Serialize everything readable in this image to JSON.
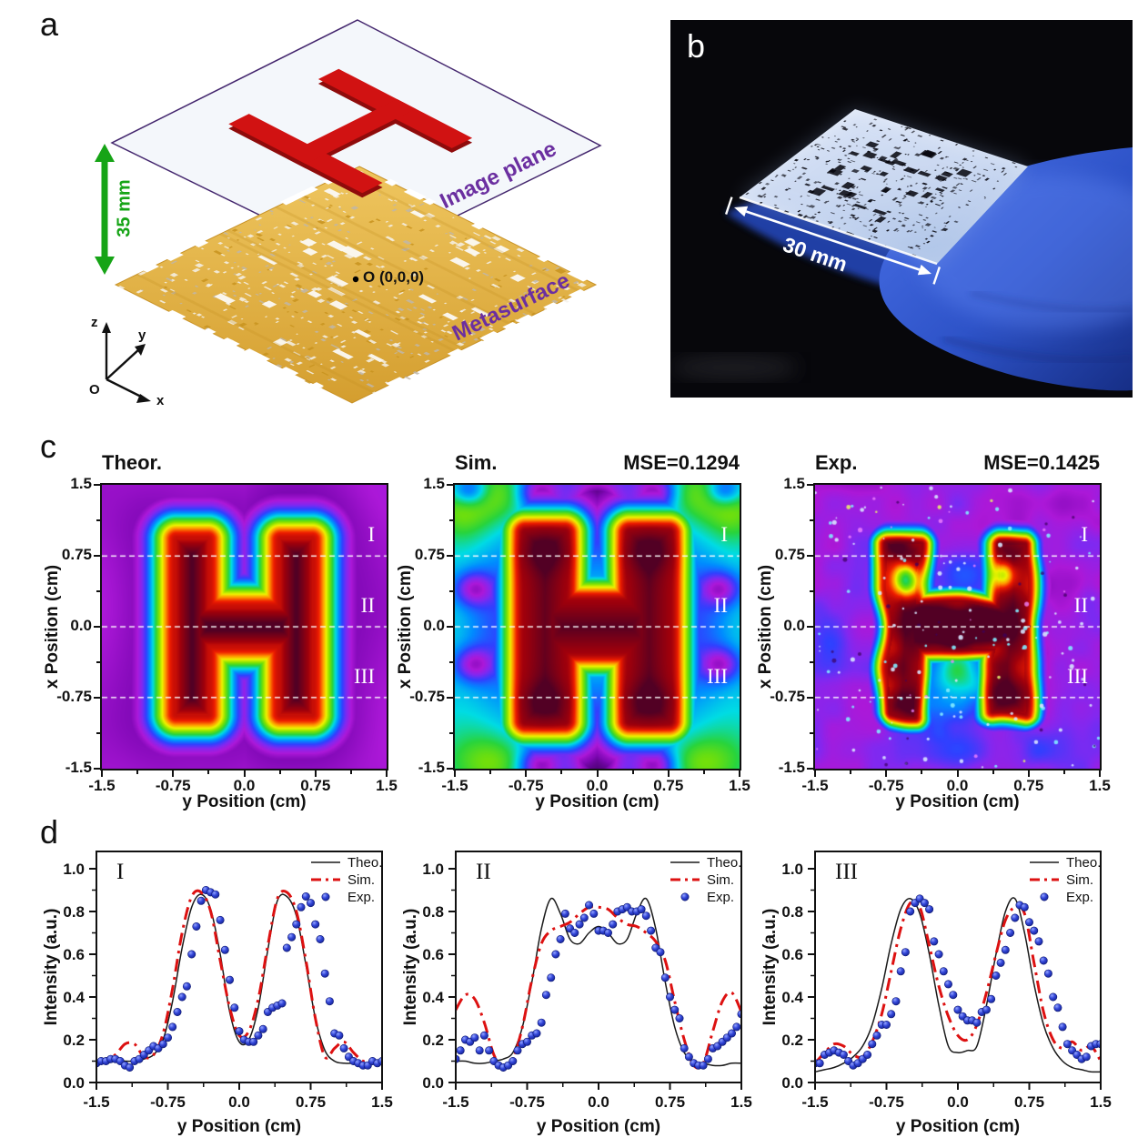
{
  "panels": {
    "a": "a",
    "b": "b",
    "c": "c",
    "d": "d"
  },
  "panel_a": {
    "distance_label": "35 mm",
    "plane_label": "Image plane",
    "surface_label": "Metasurface",
    "origin_point_label": "O (0,0,0)",
    "axis_x": "x",
    "axis_y": "y",
    "axis_z": "z",
    "axis_origin": "O",
    "colors": {
      "arrow_green": "#16A416",
      "label_purple": "#6B2FA0",
      "gold": "#DFAC3E",
      "h_red": "#D11212",
      "plane_fill": "#F4F7FB",
      "plane_edge": "#44276E"
    }
  },
  "panel_b": {
    "dimension_label": "30 mm",
    "colors": {
      "background": "#07070B",
      "glove_blue": "#2E53C8",
      "sample_light": "#DCE6F5"
    }
  },
  "panel_c": {
    "xlabel": "y Position (cm)",
    "ylabel": "x Position (cm)",
    "xtick_labels": [
      "-1.5",
      "-0.75",
      "0.0",
      "0.75",
      "1.5"
    ],
    "ytick_labels": [
      "1.5",
      "0.75",
      "0.0",
      "-0.75",
      "-1.5"
    ],
    "section_labels": [
      "I",
      "II",
      "III"
    ],
    "section_x_positions_cm": [
      0.75,
      0.0,
      -0.75
    ],
    "maps": [
      {
        "title": "Theor.",
        "mse_label": ""
      },
      {
        "title": "Sim.",
        "mse_label": "MSE=0.1294"
      },
      {
        "title": "Exp.",
        "mse_label": "MSE=0.1425"
      }
    ]
  },
  "panel_d": {
    "xlabel": "y Position (cm)",
    "ylabel": "Intensity (a.u.)",
    "xtick_labels": [
      "-1.5",
      "-0.75",
      "0.0",
      "0.75",
      "1.5"
    ],
    "ytick_labels": [
      "0.0",
      "0.2",
      "0.4",
      "0.6",
      "0.8",
      "1.0"
    ],
    "legend": [
      "Theo.",
      "Sim.",
      "Exp."
    ],
    "colors": {
      "theo": "#1A1A1A",
      "sim": "#DD1111",
      "exp": "#2433C0"
    }
  },
  "chart_data": [
    {
      "type": "heatmap",
      "title": "Theor.",
      "xlabel": "y Position (cm)",
      "ylabel": "x Position (cm)",
      "xlim": [
        -1.5,
        1.5
      ],
      "ylim": [
        -1.5,
        1.5
      ],
      "pattern": "letter-H intensity distribution, smooth theoretical field",
      "colormap": "purple-blue-cyan-green-yellow-red-darkred",
      "cross_section_lines_cm": [
        0.75,
        0.0,
        -0.75
      ],
      "cross_section_labels": [
        "I",
        "II",
        "III"
      ]
    },
    {
      "type": "heatmap",
      "title": "Sim.",
      "mse": 0.1294,
      "xlabel": "y Position (cm)",
      "ylabel": "x Position (cm)",
      "xlim": [
        -1.5,
        1.5
      ],
      "ylim": [
        -1.5,
        1.5
      ],
      "pattern": "letter-H intensity distribution, simulated field with sidelobes",
      "colormap": "purple-blue-cyan-green-yellow-red-darkred",
      "cross_section_lines_cm": [
        0.75,
        0.0,
        -0.75
      ],
      "cross_section_labels": [
        "I",
        "II",
        "III"
      ]
    },
    {
      "type": "heatmap",
      "title": "Exp.",
      "mse": 0.1425,
      "xlabel": "y Position (cm)",
      "ylabel": "x Position (cm)",
      "xlim": [
        -1.5,
        1.5
      ],
      "ylim": [
        -1.5,
        1.5
      ],
      "pattern": "letter-H intensity distribution, measured noisy field",
      "colormap": "purple-blue-cyan-green-yellow-red-darkred",
      "cross_section_lines_cm": [
        0.75,
        0.0,
        -0.75
      ],
      "cross_section_labels": [
        "I",
        "II",
        "III"
      ]
    },
    {
      "type": "line",
      "title": "I",
      "xlabel": "y Position (cm)",
      "ylabel": "Intensity (a.u.)",
      "xlim": [
        -1.5,
        1.5
      ],
      "ylim": [
        0,
        1.07
      ],
      "xticks": [
        -1.5,
        -0.75,
        0,
        0.75,
        1.5
      ],
      "yticks": [
        0,
        0.2,
        0.4,
        0.6,
        0.8,
        1
      ],
      "series": [
        {
          "name": "Theo.",
          "style": "solid",
          "color_key": "theo",
          "x_start": -1.5,
          "x_step": 0.1,
          "y": [
            0.09,
            0.09,
            0.1,
            0.1,
            0.1,
            0.11,
            0.13,
            0.2,
            0.38,
            0.63,
            0.82,
            0.88,
            0.81,
            0.6,
            0.33,
            0.19,
            0.2,
            0.35,
            0.62,
            0.85,
            0.87,
            0.78,
            0.55,
            0.3,
            0.15,
            0.1,
            0.09,
            0.09,
            0.09,
            0.09,
            0.09
          ]
        },
        {
          "name": "Sim.",
          "style": "dashdot",
          "color_key": "sim",
          "x_start": -1.5,
          "x_step": 0.1,
          "y": [
            0.1,
            0.11,
            0.13,
            0.18,
            0.18,
            0.12,
            0.13,
            0.23,
            0.44,
            0.7,
            0.87,
            0.89,
            0.8,
            0.57,
            0.35,
            0.22,
            0.24,
            0.39,
            0.64,
            0.86,
            0.89,
            0.8,
            0.57,
            0.3,
            0.12,
            0.16,
            0.19,
            0.14,
            0.1,
            0.1,
            0.1
          ]
        },
        {
          "name": "Exp.",
          "style": "dots",
          "color_key": "exp",
          "x_start": -1.5,
          "x_step": 0.05,
          "y": [
            0.09,
            0.1,
            0.1,
            0.11,
            0.11,
            0.1,
            0.08,
            0.07,
            0.1,
            0.11,
            0.13,
            0.15,
            0.17,
            0.16,
            0.18,
            0.21,
            0.26,
            0.33,
            0.4,
            0.45,
            0.6,
            0.73,
            0.85,
            0.9,
            0.89,
            0.88,
            0.76,
            0.62,
            0.48,
            0.35,
            0.24,
            0.2,
            0.19,
            0.19,
            0.22,
            0.25,
            0.33,
            0.35,
            0.36,
            0.37,
            0.63,
            0.68,
            0.74,
            0.82,
            0.87,
            0.84,
            0.74,
            0.67,
            0.51,
            0.38,
            0.23,
            0.22,
            0.16,
            0.12,
            0.1,
            0.09,
            0.08,
            0.08,
            0.1,
            0.09,
            0.1
          ]
        }
      ]
    },
    {
      "type": "line",
      "title": "II",
      "xlabel": "y Position (cm)",
      "ylabel": "Intensity (a.u.)",
      "xlim": [
        -1.5,
        1.5
      ],
      "ylim": [
        0,
        1.07
      ],
      "xticks": [
        -1.5,
        -0.75,
        0,
        0.75,
        1.5
      ],
      "yticks": [
        0,
        0.2,
        0.4,
        0.6,
        0.8,
        1
      ],
      "series": [
        {
          "name": "Theo.",
          "style": "solid",
          "color_key": "theo",
          "x_start": -1.5,
          "x_step": 0.1,
          "y": [
            0.1,
            0.1,
            0.09,
            0.09,
            0.1,
            0.11,
            0.14,
            0.26,
            0.47,
            0.72,
            0.86,
            0.79,
            0.67,
            0.65,
            0.7,
            0.73,
            0.7,
            0.65,
            0.67,
            0.79,
            0.86,
            0.72,
            0.47,
            0.26,
            0.14,
            0.1,
            0.09,
            0.08,
            0.08,
            0.09,
            0.09
          ]
        },
        {
          "name": "Sim.",
          "style": "dashdot",
          "color_key": "sim",
          "x_start": -1.5,
          "x_step": 0.1,
          "y": [
            0.34,
            0.41,
            0.39,
            0.28,
            0.13,
            0.07,
            0.11,
            0.26,
            0.48,
            0.65,
            0.71,
            0.73,
            0.75,
            0.79,
            0.82,
            0.82,
            0.81,
            0.77,
            0.74,
            0.73,
            0.7,
            0.66,
            0.57,
            0.38,
            0.2,
            0.08,
            0.09,
            0.24,
            0.38,
            0.42,
            0.33
          ]
        },
        {
          "name": "Exp.",
          "style": "dots",
          "color_key": "exp",
          "x_start": -1.5,
          "x_step": 0.05,
          "y": [
            0.11,
            0.15,
            0.2,
            0.19,
            0.21,
            0.15,
            0.22,
            0.15,
            0.1,
            0.08,
            0.07,
            0.08,
            0.1,
            0.15,
            0.18,
            0.19,
            0.22,
            0.23,
            0.28,
            0.41,
            0.49,
            0.6,
            0.67,
            0.79,
            0.72,
            0.7,
            0.74,
            0.77,
            0.83,
            0.79,
            0.71,
            0.71,
            0.7,
            0.74,
            0.8,
            0.81,
            0.82,
            0.8,
            0.8,
            0.81,
            0.78,
            0.71,
            0.63,
            0.61,
            0.49,
            0.4,
            0.34,
            0.3,
            0.16,
            0.12,
            0.09,
            0.08,
            0.08,
            0.11,
            0.16,
            0.17,
            0.19,
            0.21,
            0.23,
            0.26,
            0.32
          ]
        }
      ]
    },
    {
      "type": "line",
      "title": "III",
      "xlabel": "y Position (cm)",
      "ylabel": "Intensity (a.u.)",
      "xlim": [
        -1.5,
        1.5
      ],
      "ylim": [
        0,
        1.07
      ],
      "xticks": [
        -1.5,
        -0.75,
        0,
        0.75,
        1.5
      ],
      "yticks": [
        0,
        0.2,
        0.4,
        0.6,
        0.8,
        1
      ],
      "series": [
        {
          "name": "Theo.",
          "style": "solid",
          "color_key": "theo",
          "x_start": -1.5,
          "x_step": 0.1,
          "y": [
            0.05,
            0.06,
            0.07,
            0.09,
            0.12,
            0.17,
            0.27,
            0.44,
            0.65,
            0.81,
            0.86,
            0.79,
            0.6,
            0.36,
            0.17,
            0.14,
            0.15,
            0.17,
            0.36,
            0.6,
            0.8,
            0.86,
            0.7,
            0.46,
            0.27,
            0.16,
            0.1,
            0.07,
            0.06,
            0.05,
            0.05
          ]
        },
        {
          "name": "Sim.",
          "style": "dashdot",
          "color_key": "sim",
          "x_start": -1.5,
          "x_step": 0.1,
          "y": [
            0.09,
            0.14,
            0.18,
            0.17,
            0.13,
            0.12,
            0.19,
            0.32,
            0.52,
            0.72,
            0.84,
            0.82,
            0.64,
            0.45,
            0.31,
            0.22,
            0.2,
            0.27,
            0.42,
            0.6,
            0.76,
            0.82,
            0.79,
            0.56,
            0.33,
            0.2,
            0.16,
            0.19,
            0.15,
            0.17,
            0.1
          ]
        },
        {
          "name": "Exp.",
          "style": "dots",
          "color_key": "exp",
          "x_start": -1.5,
          "x_step": 0.05,
          "y": [
            0.09,
            0.09,
            0.13,
            0.14,
            0.15,
            0.14,
            0.13,
            0.1,
            0.08,
            0.09,
            0.11,
            0.13,
            0.18,
            0.22,
            0.27,
            0.27,
            0.32,
            0.38,
            0.52,
            0.61,
            0.8,
            0.84,
            0.86,
            0.84,
            0.81,
            0.66,
            0.6,
            0.52,
            0.46,
            0.41,
            0.34,
            0.31,
            0.29,
            0.29,
            0.28,
            0.33,
            0.34,
            0.39,
            0.5,
            0.56,
            0.62,
            0.7,
            0.77,
            0.83,
            0.82,
            0.75,
            0.71,
            0.66,
            0.57,
            0.51,
            0.4,
            0.35,
            0.26,
            0.18,
            0.15,
            0.13,
            0.11,
            0.12,
            0.17,
            0.18,
            0.18
          ]
        }
      ]
    }
  ]
}
